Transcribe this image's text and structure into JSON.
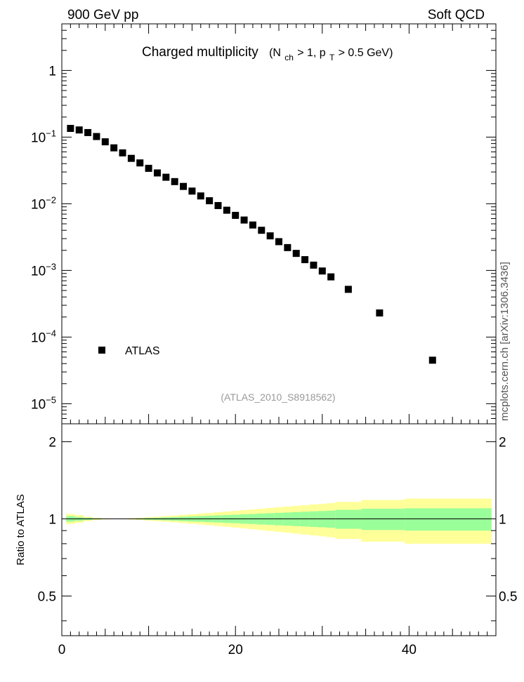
{
  "header": {
    "left": "900 GeV pp",
    "right": "Soft QCD"
  },
  "title": {
    "main": "Charged multiplicity",
    "paren_open": "(N",
    "sub1": "ch",
    "mid": " > 1, p",
    "sub2": "T",
    "end": " > 0.5 GeV)"
  },
  "side_label": "mcplots.cern.ch [arXiv:1306.3436]",
  "analysis_label": "(ATLAS_2010_S8918562)",
  "colors": {
    "marker": "#000000",
    "band_outer": "#ffff99",
    "band_inner": "#99ff99",
    "analysis_text": "#999999"
  },
  "chart_data": [
    {
      "type": "scatter",
      "yscale": "log",
      "xlim": [
        0,
        50
      ],
      "ylim": [
        5e-06,
        5
      ],
      "y_tick_labels": [
        {
          "base": "10",
          "exp": "−5",
          "value": 1e-05
        },
        {
          "base": "10",
          "exp": "−4",
          "value": 0.0001
        },
        {
          "base": "10",
          "exp": "−3",
          "value": 0.001
        },
        {
          "base": "10",
          "exp": "−2",
          "value": 0.01
        },
        {
          "base": "10",
          "exp": "−1",
          "value": 0.1
        },
        {
          "base": "1",
          "exp": "",
          "value": 1
        }
      ],
      "legend": {
        "label": "ATLAS",
        "position": "lower-left"
      },
      "series": [
        {
          "name": "ATLAS",
          "x": [
            1,
            2,
            3,
            4,
            5,
            6,
            7,
            8,
            9,
            10,
            11,
            12,
            13,
            14,
            15,
            16,
            17,
            18,
            19,
            20,
            21,
            22,
            23,
            24,
            25,
            26,
            27,
            28,
            29,
            30,
            31,
            33,
            36.6,
            42.7
          ],
          "y": [
            0.135,
            0.128,
            0.117,
            0.102,
            0.085,
            0.069,
            0.058,
            0.048,
            0.041,
            0.034,
            0.029,
            0.025,
            0.0215,
            0.0182,
            0.0155,
            0.0131,
            0.0111,
            0.0094,
            0.008,
            0.0067,
            0.0057,
            0.0048,
            0.004,
            0.0033,
            0.0027,
            0.0022,
            0.0018,
            0.00145,
            0.0012,
            0.00098,
            0.0008,
            0.00052,
            0.00023,
            4.5e-05
          ]
        }
      ]
    },
    {
      "type": "area",
      "ylabel": "Ratio to ATLAS",
      "xlim": [
        0,
        50
      ],
      "ylim": [
        0.35,
        2.35
      ],
      "x_tick_labels": [
        "0",
        "20",
        "40"
      ],
      "y_tick_labels": [
        "0.5",
        "1",
        "2"
      ],
      "reference": 1,
      "bins": [
        {
          "x0": 0.5,
          "x1": 1.5,
          "inner": [
            0.975,
            1.025
          ],
          "outer": [
            0.955,
            1.045
          ]
        },
        {
          "x0": 1.5,
          "x1": 2.5,
          "inner": [
            0.983,
            1.017
          ],
          "outer": [
            0.965,
            1.035
          ]
        },
        {
          "x0": 2.5,
          "x1": 3.5,
          "inner": [
            0.99,
            1.01
          ],
          "outer": [
            0.98,
            1.02
          ]
        },
        {
          "x0": 3.5,
          "x1": 4.5,
          "inner": [
            0.995,
            1.005
          ],
          "outer": [
            0.99,
            1.01
          ]
        },
        {
          "x0": 4.5,
          "x1": 5.5,
          "inner": [
            0.997,
            1.003
          ],
          "outer": [
            0.995,
            1.005
          ]
        },
        {
          "x0": 5.5,
          "x1": 6.5,
          "inner": [
            0.998,
            1.002
          ],
          "outer": [
            0.997,
            1.003
          ]
        },
        {
          "x0": 6.5,
          "x1": 7.5,
          "inner": [
            0.998,
            1.002
          ],
          "outer": [
            0.997,
            1.003
          ]
        },
        {
          "x0": 7.5,
          "x1": 8.5,
          "inner": [
            0.997,
            1.003
          ],
          "outer": [
            0.994,
            1.006
          ]
        },
        {
          "x0": 8.5,
          "x1": 9.5,
          "inner": [
            0.995,
            1.005
          ],
          "outer": [
            0.99,
            1.01
          ]
        },
        {
          "x0": 9.5,
          "x1": 10.5,
          "inner": [
            0.992,
            1.008
          ],
          "outer": [
            0.985,
            1.015
          ]
        },
        {
          "x0": 10.5,
          "x1": 11.5,
          "inner": [
            0.99,
            1.01
          ],
          "outer": [
            0.98,
            1.02
          ]
        },
        {
          "x0": 11.5,
          "x1": 12.5,
          "inner": [
            0.987,
            1.013
          ],
          "outer": [
            0.975,
            1.025
          ]
        },
        {
          "x0": 12.5,
          "x1": 13.5,
          "inner": [
            0.984,
            1.016
          ],
          "outer": [
            0.97,
            1.03
          ]
        },
        {
          "x0": 13.5,
          "x1": 14.5,
          "inner": [
            0.98,
            1.02
          ],
          "outer": [
            0.963,
            1.037
          ]
        },
        {
          "x0": 14.5,
          "x1": 15.5,
          "inner": [
            0.977,
            1.023
          ],
          "outer": [
            0.957,
            1.043
          ]
        },
        {
          "x0": 15.5,
          "x1": 16.5,
          "inner": [
            0.974,
            1.026
          ],
          "outer": [
            0.951,
            1.049
          ]
        },
        {
          "x0": 16.5,
          "x1": 17.5,
          "inner": [
            0.971,
            1.029
          ],
          "outer": [
            0.945,
            1.055
          ]
        },
        {
          "x0": 17.5,
          "x1": 18.5,
          "inner": [
            0.968,
            1.032
          ],
          "outer": [
            0.938,
            1.062
          ]
        },
        {
          "x0": 18.5,
          "x1": 19.5,
          "inner": [
            0.965,
            1.035
          ],
          "outer": [
            0.932,
            1.068
          ]
        },
        {
          "x0": 19.5,
          "x1": 20.5,
          "inner": [
            0.962,
            1.038
          ],
          "outer": [
            0.925,
            1.075
          ]
        },
        {
          "x0": 20.5,
          "x1": 21.5,
          "inner": [
            0.958,
            1.042
          ],
          "outer": [
            0.918,
            1.082
          ]
        },
        {
          "x0": 21.5,
          "x1": 22.5,
          "inner": [
            0.955,
            1.045
          ],
          "outer": [
            0.911,
            1.089
          ]
        },
        {
          "x0": 22.5,
          "x1": 23.5,
          "inner": [
            0.951,
            1.049
          ],
          "outer": [
            0.904,
            1.096
          ]
        },
        {
          "x0": 23.5,
          "x1": 24.5,
          "inner": [
            0.948,
            1.052
          ],
          "outer": [
            0.897,
            1.103
          ]
        },
        {
          "x0": 24.5,
          "x1": 25.5,
          "inner": [
            0.944,
            1.056
          ],
          "outer": [
            0.89,
            1.11
          ]
        },
        {
          "x0": 25.5,
          "x1": 26.5,
          "inner": [
            0.941,
            1.059
          ],
          "outer": [
            0.883,
            1.117
          ]
        },
        {
          "x0": 26.5,
          "x1": 27.5,
          "inner": [
            0.937,
            1.063
          ],
          "outer": [
            0.876,
            1.124
          ]
        },
        {
          "x0": 27.5,
          "x1": 28.5,
          "inner": [
            0.934,
            1.066
          ],
          "outer": [
            0.869,
            1.131
          ]
        },
        {
          "x0": 28.5,
          "x1": 29.5,
          "inner": [
            0.93,
            1.07
          ],
          "outer": [
            0.862,
            1.138
          ]
        },
        {
          "x0": 29.5,
          "x1": 30.5,
          "inner": [
            0.927,
            1.073
          ],
          "outer": [
            0.855,
            1.145
          ]
        },
        {
          "x0": 30.5,
          "x1": 31.5,
          "inner": [
            0.923,
            1.077
          ],
          "outer": [
            0.848,
            1.152
          ]
        },
        {
          "x0": 31.5,
          "x1": 34.5,
          "inner": [
            0.915,
            1.085
          ],
          "outer": [
            0.835,
            1.165
          ]
        },
        {
          "x0": 34.5,
          "x1": 39.5,
          "inner": [
            0.905,
            1.095
          ],
          "outer": [
            0.815,
            1.185
          ]
        },
        {
          "x0": 39.5,
          "x1": 49.5,
          "inner": [
            0.9,
            1.1
          ],
          "outer": [
            0.8,
            1.2
          ]
        }
      ]
    }
  ]
}
